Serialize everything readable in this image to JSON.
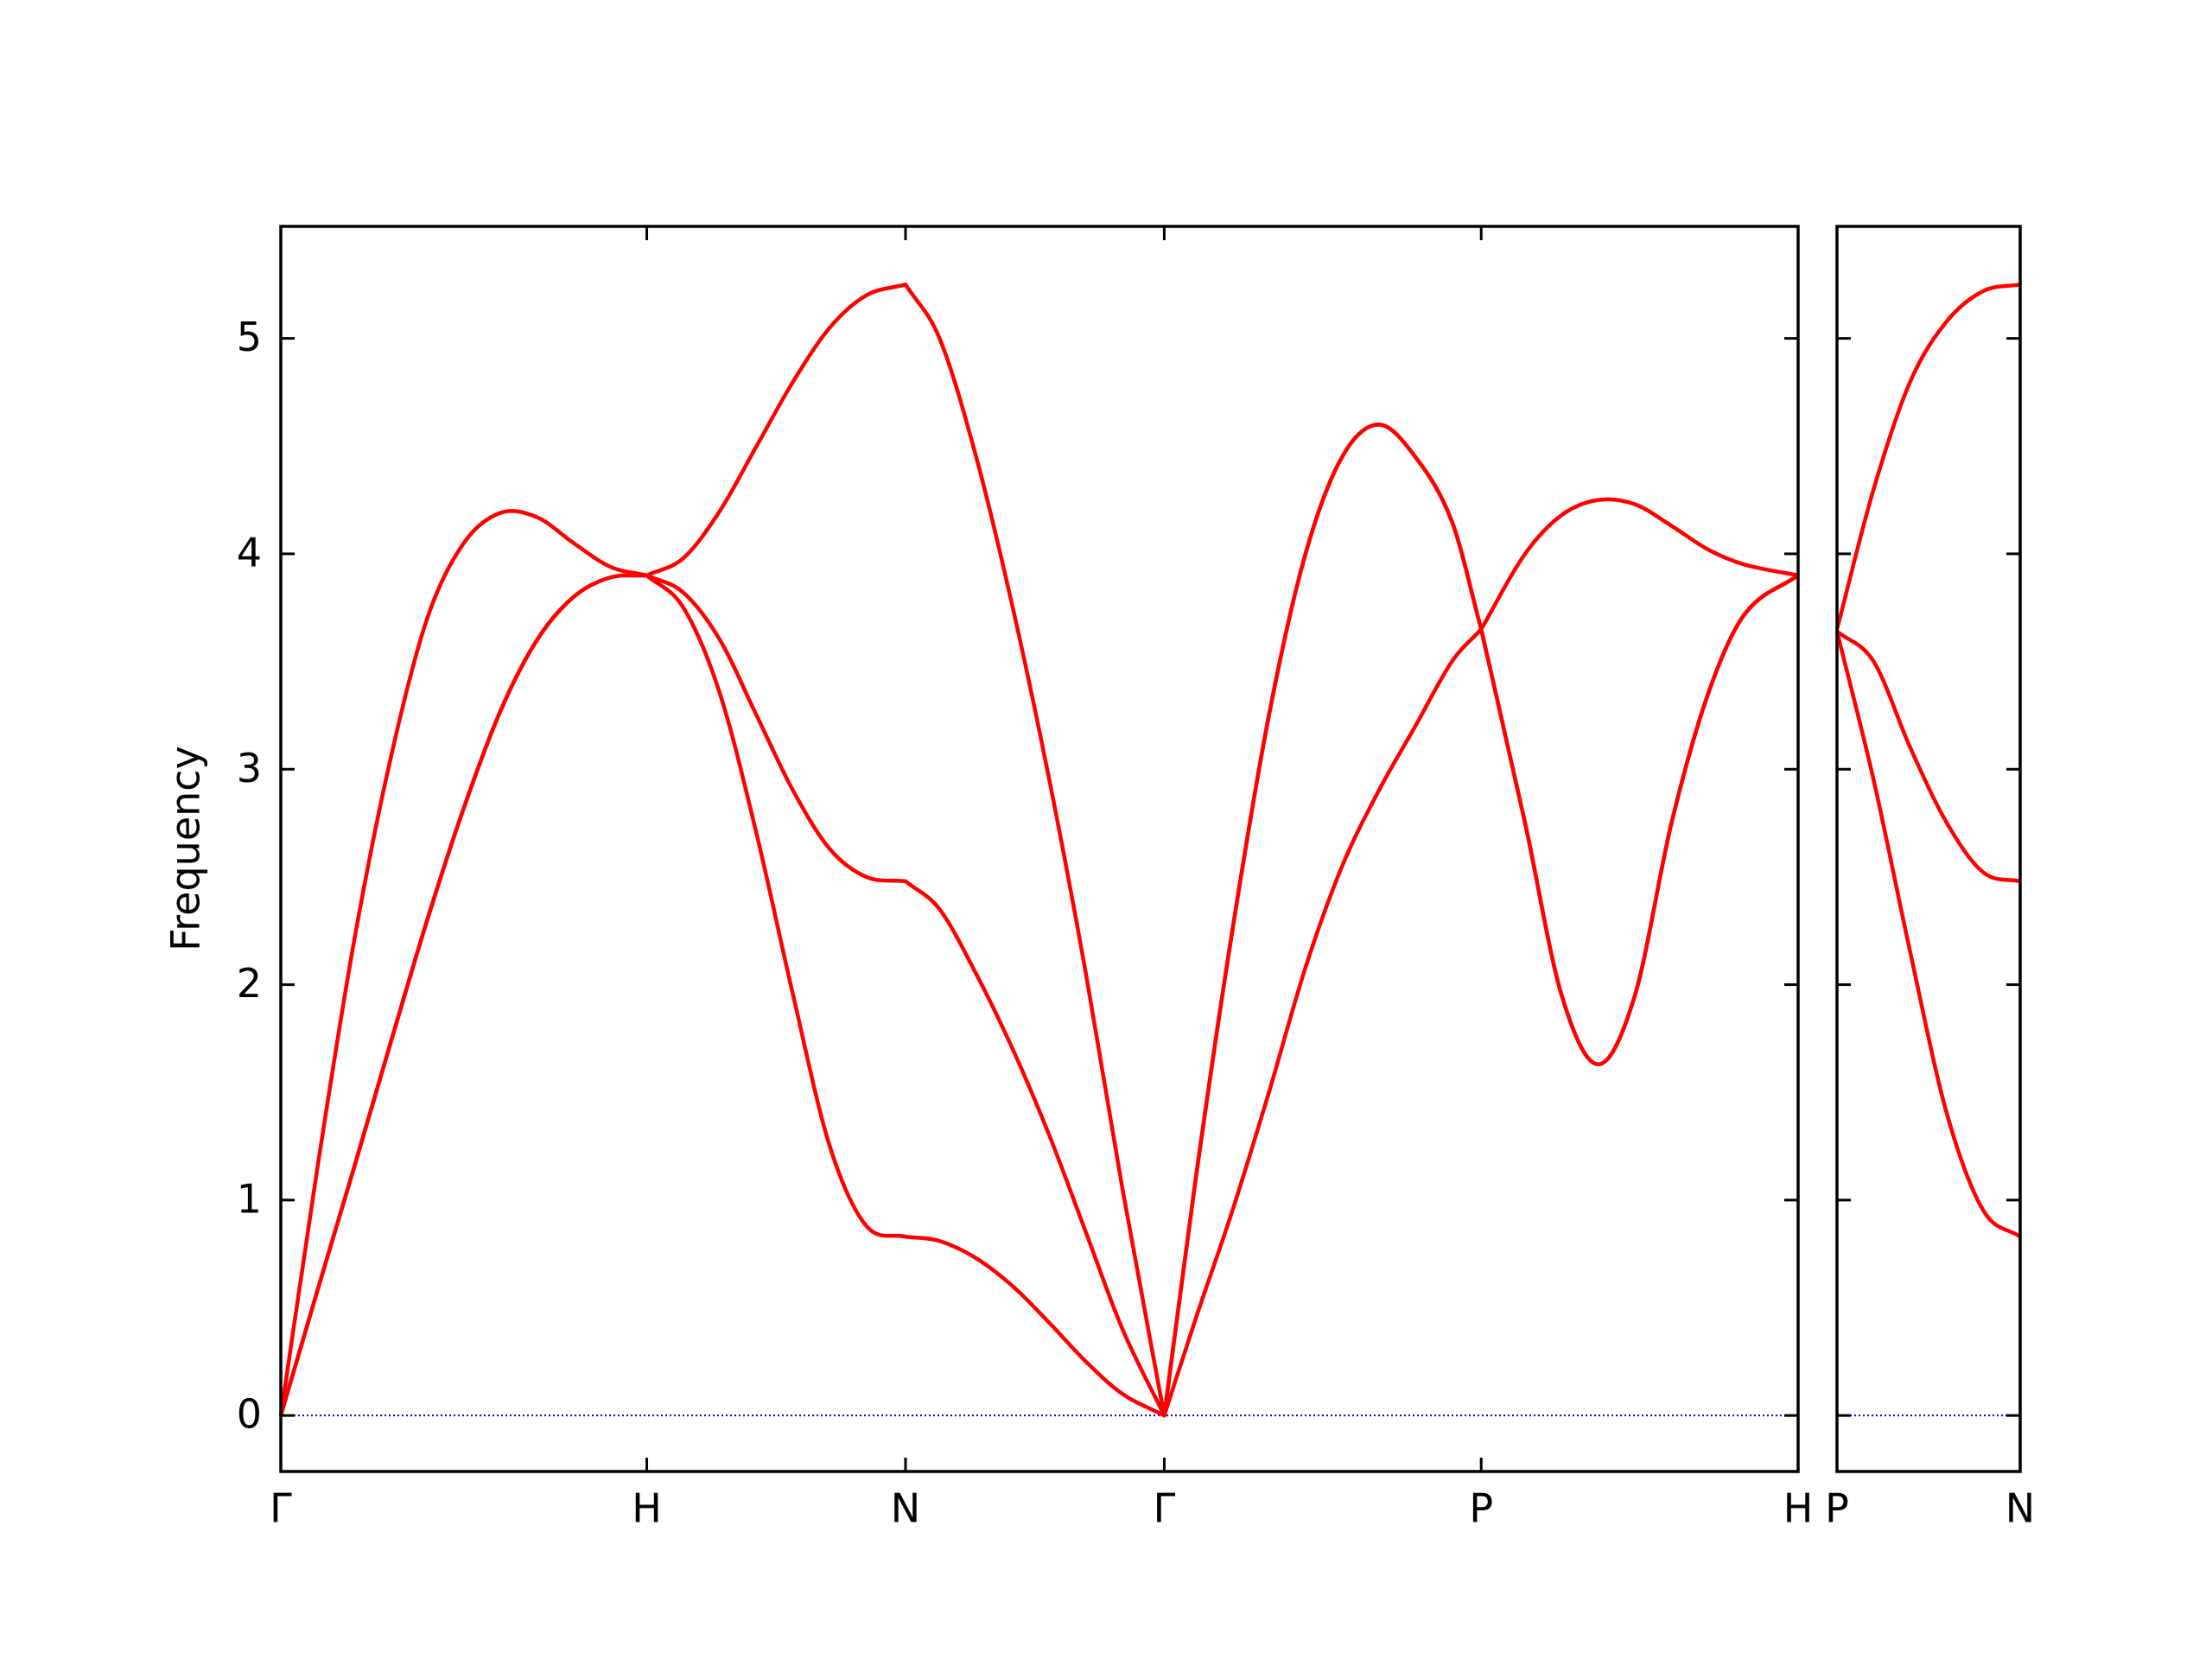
{
  "chart_data": [
    {
      "type": "line",
      "ylabel": "Frequency",
      "x": [
        0,
        0.1,
        0.2,
        0.3,
        0.4,
        0.5,
        0.6,
        0.7,
        0.8,
        0.9,
        1.0,
        1.1,
        1.2,
        1.3,
        1.4,
        1.5,
        1.6,
        1.707,
        1.8,
        1.9,
        2.0,
        2.1,
        2.2,
        2.3,
        2.414,
        2.5,
        2.6,
        2.7,
        2.8,
        2.9,
        3.0,
        3.1,
        3.2,
        3.28,
        3.4,
        3.5,
        3.6,
        3.7,
        3.8,
        3.9,
        4.0,
        4.146
      ],
      "series": [
        {
          "color": "#ff0000",
          "values": [
            0,
            1.15,
            2.2,
            3.05,
            3.7,
            4.05,
            4.19,
            4.17,
            4.05,
            3.94,
            3.9,
            3.98,
            4.2,
            4.5,
            4.8,
            5.05,
            5.2,
            5.25,
            5.0,
            4.45,
            3.75,
            2.95,
            2.05,
            1.05,
            0,
            1.1,
            2.25,
            3.25,
            4.0,
            4.45,
            4.6,
            4.45,
            4.15,
            3.65,
            2.75,
            1.95,
            1.63,
            1.95,
            2.75,
            3.35,
            3.72,
            3.9
          ]
        },
        {
          "color": "#ff0000",
          "values": [
            0,
            0.58,
            1.15,
            1.73,
            2.3,
            2.82,
            3.27,
            3.6,
            3.8,
            3.89,
            3.9,
            3.82,
            3.6,
            3.25,
            2.9,
            2.63,
            2.5,
            2.48,
            2.35,
            2.05,
            1.7,
            1.3,
            0.85,
            0.4,
            0,
            0.45,
            0.95,
            1.5,
            2.08,
            2.55,
            2.9,
            3.2,
            3.5,
            3.65,
            4.0,
            4.18,
            4.25,
            4.23,
            4.13,
            4.02,
            3.95,
            3.9
          ]
        },
        {
          "color": "#ff0000",
          "values": [
            0,
            0.58,
            1.15,
            1.73,
            2.3,
            2.82,
            3.27,
            3.6,
            3.8,
            3.89,
            3.9,
            3.75,
            3.35,
            2.7,
            1.95,
            1.25,
            0.88,
            0.83,
            0.81,
            0.73,
            0.6,
            0.43,
            0.25,
            0.1,
            0,
            1.1,
            2.25,
            3.25,
            4.0,
            4.45,
            4.6,
            4.45,
            4.15,
            3.65,
            2.75,
            1.95,
            1.63,
            1.95,
            2.75,
            3.35,
            3.72,
            3.9
          ]
        }
      ],
      "xlim": [
        0,
        4.146
      ],
      "xticks": [
        {
          "value": 0,
          "label": "Γ"
        },
        {
          "value": 1.0,
          "label": "H"
        },
        {
          "value": 1.707,
          "label": "N"
        },
        {
          "value": 2.414,
          "label": "Γ"
        },
        {
          "value": 3.28,
          "label": "P"
        },
        {
          "value": 4.146,
          "label": "H"
        }
      ],
      "ylim": [
        -0.26,
        5.52
      ],
      "yticks": [
        0,
        1,
        2,
        3,
        4,
        5
      ],
      "hline": {
        "y": 0,
        "color": "#0000cc"
      }
    },
    {
      "type": "line",
      "x": [
        4.146,
        4.246,
        4.346,
        4.446,
        4.546,
        4.646
      ],
      "series": [
        {
          "color": "#ff0000",
          "values": [
            3.65,
            4.3,
            4.8,
            5.08,
            5.22,
            5.25
          ]
        },
        {
          "color": "#ff0000",
          "values": [
            3.64,
            3.5,
            3.1,
            2.75,
            2.52,
            2.48
          ]
        },
        {
          "color": "#ff0000",
          "values": [
            3.64,
            2.95,
            2.15,
            1.4,
            0.95,
            0.83
          ]
        }
      ],
      "xlim": [
        4.146,
        4.646
      ],
      "xticks": [
        {
          "value": 4.146,
          "label": "P"
        },
        {
          "value": 4.646,
          "label": "N"
        }
      ],
      "ylim": [
        -0.26,
        5.52
      ],
      "yticks": [
        0,
        1,
        2,
        3,
        4,
        5
      ],
      "hline": {
        "y": 0,
        "color": "#0000cc"
      }
    }
  ]
}
